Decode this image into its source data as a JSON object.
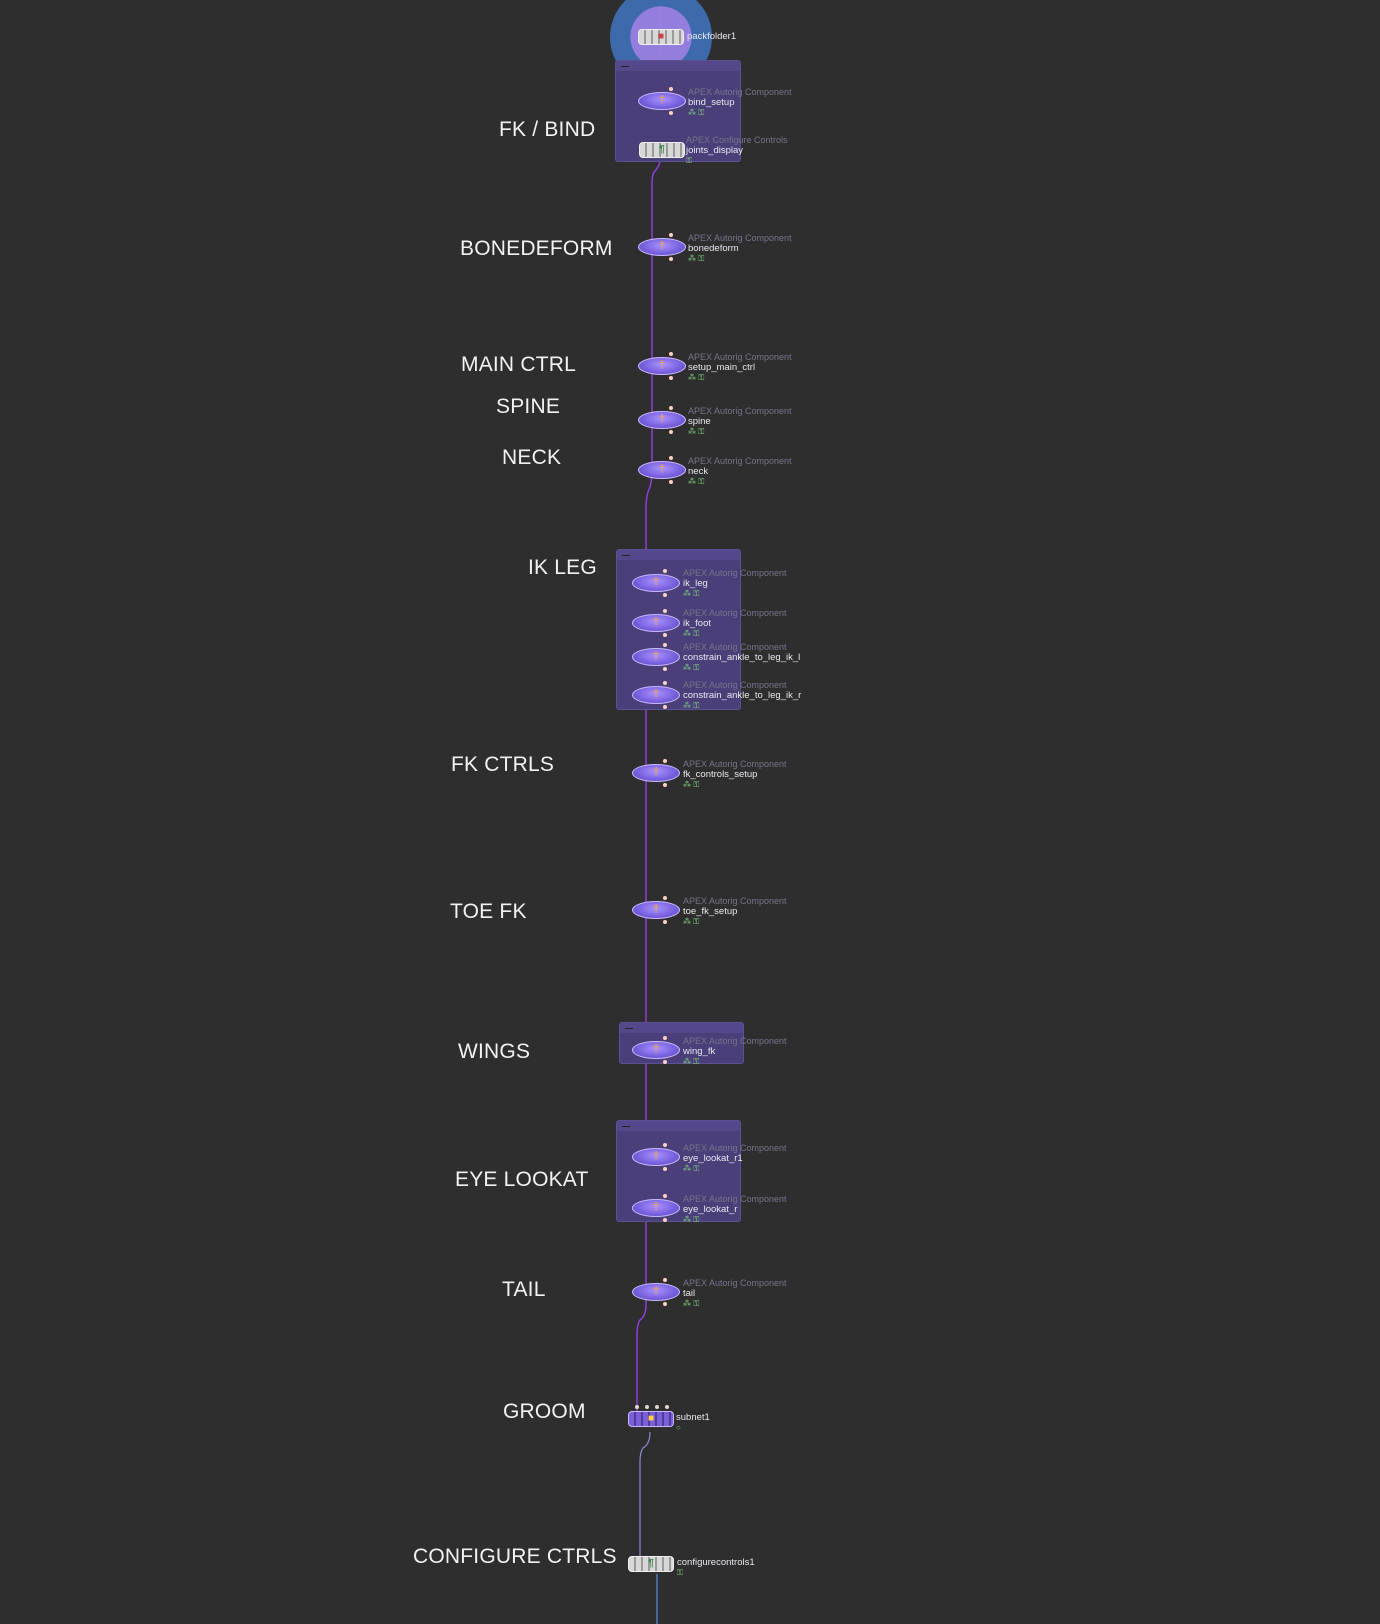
{
  "sections": [
    {
      "id": "fk_bind",
      "label": "FK / BIND"
    },
    {
      "id": "bonedeform",
      "label": "BONEDEFORM"
    },
    {
      "id": "main_ctrl",
      "label": "MAIN CTRL"
    },
    {
      "id": "spine",
      "label": "SPINE"
    },
    {
      "id": "neck",
      "label": "NECK"
    },
    {
      "id": "ik_leg",
      "label": "IK LEG"
    },
    {
      "id": "fk_ctrls",
      "label": "FK CTRLS"
    },
    {
      "id": "toe_fk",
      "label": "TOE FK"
    },
    {
      "id": "wings",
      "label": "WINGS"
    },
    {
      "id": "eye_lookat",
      "label": "EYE LOOKAT"
    },
    {
      "id": "tail",
      "label": "TAIL"
    },
    {
      "id": "groom",
      "label": "GROOM"
    },
    {
      "id": "configure_ctrls",
      "label": "CONFIGURE CTRLS"
    }
  ],
  "nodes": {
    "packfolder": {
      "name": "packfolder1"
    },
    "bind_setup": {
      "type": "APEX Autorig Component",
      "name": "bind_setup"
    },
    "joints_display": {
      "type": "APEX Configure Controls",
      "name": "joints_display"
    },
    "bonedeform": {
      "type": "APEX Autorig Component",
      "name": "bonedeform"
    },
    "setup_main_ctrl": {
      "type": "APEX Autorig Component",
      "name": "setup_main_ctrl"
    },
    "spine": {
      "type": "APEX Autorig Component",
      "name": "spine"
    },
    "neck": {
      "type": "APEX Autorig Component",
      "name": "neck"
    },
    "ik_leg": {
      "type": "APEX Autorig Component",
      "name": "ik_leg"
    },
    "ik_foot": {
      "type": "APEX Autorig Component",
      "name": "ik_foot"
    },
    "constrain_l": {
      "type": "APEX Autorig Component",
      "name": "constrain_ankle_to_leg_ik_l"
    },
    "constrain_r": {
      "type": "APEX Autorig Component",
      "name": "constrain_ankle_to_leg_ik_r"
    },
    "fk_controls_setup": {
      "type": "APEX Autorig Component",
      "name": "fk_controls_setup"
    },
    "toe_fk_setup": {
      "type": "APEX Autorig Component",
      "name": "toe_fk_setup"
    },
    "wing_fk": {
      "type": "APEX Autorig Component",
      "name": "wing_fk"
    },
    "eye_lookat_r1": {
      "type": "APEX Autorig Component",
      "name": "eye_lookat_r1"
    },
    "eye_lookat_r": {
      "type": "APEX Autorig Component",
      "name": "eye_lookat_r"
    },
    "tail": {
      "type": "APEX Autorig Component",
      "name": "tail"
    },
    "subnet1": {
      "name": "subnet1"
    },
    "configurecontrols1": {
      "name": "configurecontrols1"
    }
  },
  "icons": {
    "component": "autorig-component-icon",
    "configure": "configure-controls-icon",
    "subnet": "subnet-icon",
    "pack": "packfolder-icon"
  },
  "colors": {
    "background": "#2e2e2e",
    "wire": "#8b3fd8",
    "wire_blue": "#4a7cc0",
    "netbox": "#4a3f78",
    "node": "#7b62e0"
  }
}
